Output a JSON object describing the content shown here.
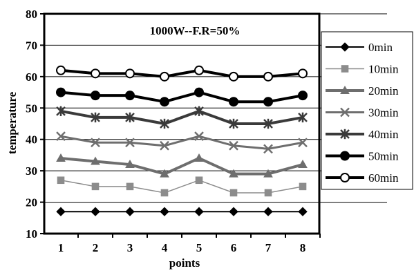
{
  "chart_data": {
    "type": "line",
    "title": "1000W--F.R=50%",
    "xlabel": "points",
    "ylabel": "temperature",
    "categories": [
      "1",
      "2",
      "3",
      "4",
      "5",
      "6",
      "7",
      "8"
    ],
    "ylim": [
      10,
      80
    ],
    "yticks": [
      "10",
      "20",
      "30",
      "40",
      "50",
      "60",
      "70",
      "80"
    ],
    "grid": "horizontal",
    "legend_position": "right",
    "series": [
      {
        "name": "0min",
        "values": [
          17,
          17,
          17,
          17,
          17,
          17,
          17,
          17
        ],
        "color": "#000000",
        "marker": "diamond",
        "filled": true
      },
      {
        "name": "10min",
        "values": [
          27,
          25,
          25,
          23,
          27,
          23,
          23,
          25
        ],
        "color": "#8c8c8c",
        "marker": "square",
        "filled": true
      },
      {
        "name": "20min",
        "values": [
          34,
          33,
          32,
          29,
          34,
          29,
          29,
          32
        ],
        "color": "#6e6e6e",
        "marker": "triangle",
        "filled": true
      },
      {
        "name": "30min",
        "values": [
          41,
          39,
          39,
          38,
          41,
          38,
          37,
          39
        ],
        "color": "#6e6e6e",
        "marker": "x",
        "filled": false
      },
      {
        "name": "40min",
        "values": [
          49,
          47,
          47,
          45,
          49,
          45,
          45,
          47
        ],
        "color": "#3a3a3a",
        "marker": "asterisk",
        "filled": false
      },
      {
        "name": "50min",
        "values": [
          55,
          54,
          54,
          52,
          55,
          52,
          52,
          54
        ],
        "color": "#000000",
        "marker": "circle",
        "filled": true
      },
      {
        "name": "60min",
        "values": [
          62,
          61,
          61,
          60,
          62,
          60,
          60,
          61
        ],
        "color": "#000000",
        "marker": "circle",
        "filled": false
      }
    ]
  }
}
